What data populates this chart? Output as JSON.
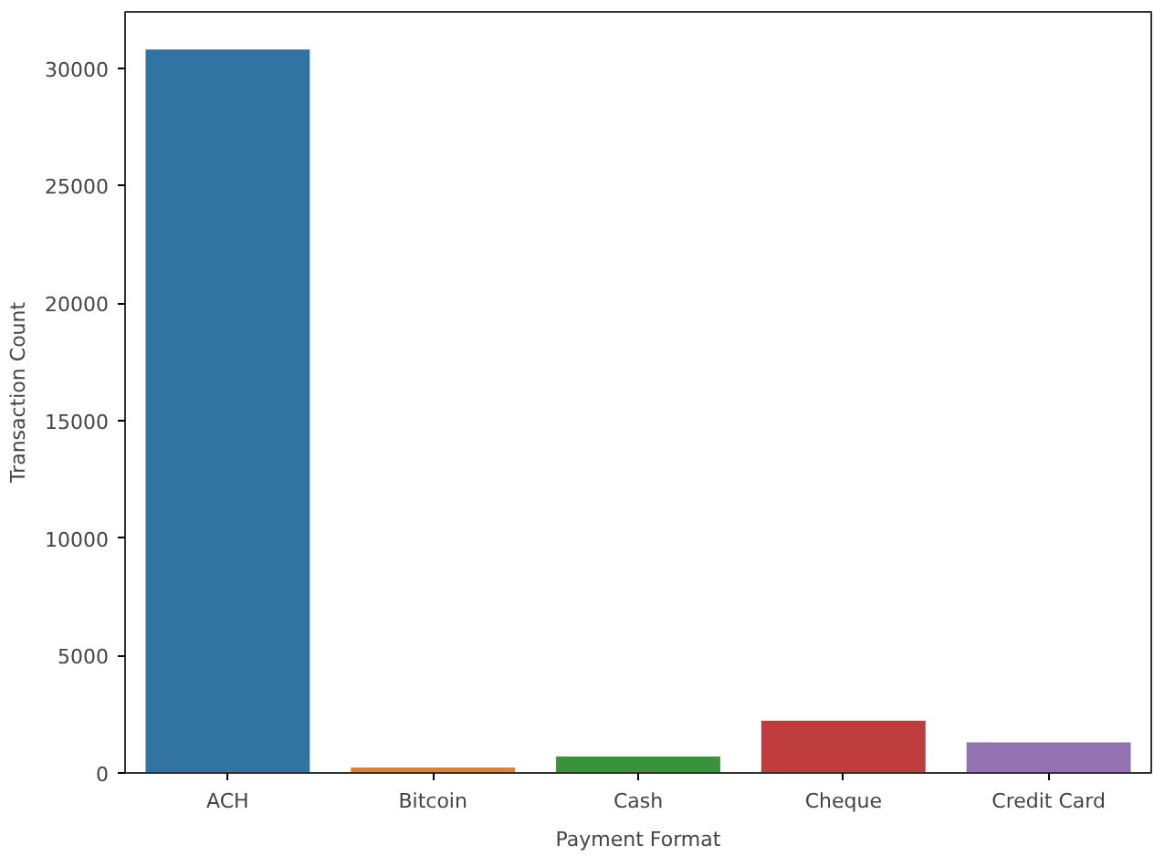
{
  "chart_data": {
    "type": "bar",
    "xlabel": "Payment Format",
    "ylabel": "Transaction Count",
    "categories": [
      "ACH",
      "Bitcoin",
      "Cash",
      "Cheque",
      "Credit Card"
    ],
    "values": [
      30800,
      230,
      700,
      2220,
      1300
    ],
    "colors": [
      "#3274a1",
      "#e1812c",
      "#3a923a",
      "#c03d3e",
      "#9372b2"
    ],
    "ylim": [
      0,
      32400
    ],
    "yticks": [
      0,
      5000,
      10000,
      15000,
      20000,
      25000,
      30000
    ],
    "grid": false
  }
}
